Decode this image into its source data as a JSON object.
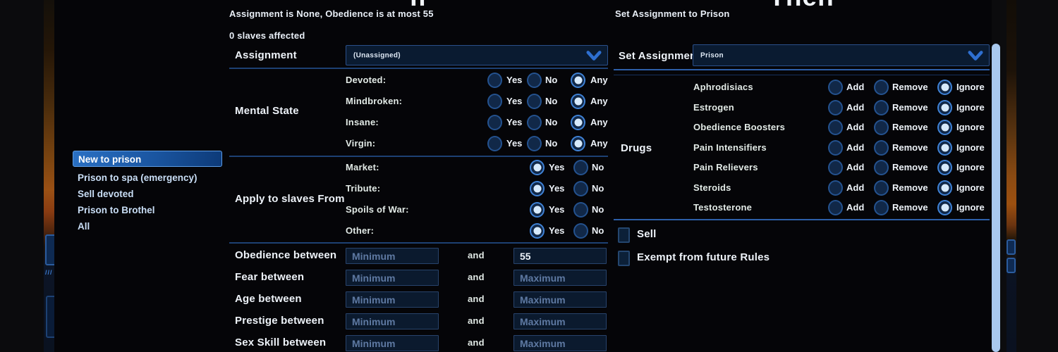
{
  "colors": {
    "accent_blue": "#3f82d6",
    "selection_blue": "#2a70c3",
    "scrollbar": "#a9c9ee",
    "panel_bg": "#050508",
    "separator": "#1d4173",
    "edge_glow_orange": "#9a5014"
  },
  "sidebar": {
    "items": [
      {
        "label": "New to prison",
        "selected": true
      },
      {
        "label": "Prison to spa (emergency)",
        "selected": false
      },
      {
        "label": "Sell devoted",
        "selected": false
      },
      {
        "label": "Prison to Brothel",
        "selected": false
      },
      {
        "label": "All",
        "selected": false
      }
    ]
  },
  "if_panel": {
    "header": "If",
    "summary": "Assignment is None, Obedience is at most 55",
    "affected": "0 slaves affected",
    "assignment": {
      "label": "Assignment",
      "value": "(Unassigned)"
    },
    "mental_state": {
      "label": "Mental State",
      "options": [
        "Yes",
        "No",
        "Any"
      ],
      "rows": [
        {
          "label": "Devoted:",
          "selected": "Any"
        },
        {
          "label": "Mindbroken:",
          "selected": "Any"
        },
        {
          "label": "Insane:",
          "selected": "Any"
        },
        {
          "label": "Virgin:",
          "selected": "Any"
        }
      ]
    },
    "apply_from": {
      "label": "Apply to slaves From",
      "options": [
        "Yes",
        "No"
      ],
      "rows": [
        {
          "label": "Market:",
          "selected": "Yes"
        },
        {
          "label": "Tribute:",
          "selected": "Yes"
        },
        {
          "label": "Spoils of War:",
          "selected": "Yes"
        },
        {
          "label": "Other:",
          "selected": "Yes"
        }
      ]
    },
    "ranges": {
      "and_label": "and",
      "min_placeholder": "Minimum",
      "max_placeholder": "Maximum",
      "rows": [
        {
          "label": "Obedience between",
          "min": "",
          "max": "55"
        },
        {
          "label": "Fear between",
          "min": "",
          "max": ""
        },
        {
          "label": "Age between",
          "min": "",
          "max": ""
        },
        {
          "label": "Prestige between",
          "min": "",
          "max": ""
        },
        {
          "label": "Sex Skill between",
          "min": "",
          "max": ""
        }
      ]
    }
  },
  "then_panel": {
    "header": "Then",
    "summary": "Set Assignment to Prison",
    "set_assignment": {
      "label": "Set Assignment",
      "value": "Prison"
    },
    "drugs": {
      "label": "Drugs",
      "options": [
        "Add",
        "Remove",
        "Ignore"
      ],
      "rows": [
        {
          "label": "Aphrodisiacs",
          "selected": "Ignore"
        },
        {
          "label": "Estrogen",
          "selected": "Ignore"
        },
        {
          "label": "Obedience Boosters",
          "selected": "Ignore"
        },
        {
          "label": "Pain Intensifiers",
          "selected": "Ignore"
        },
        {
          "label": "Pain Relievers",
          "selected": "Ignore"
        },
        {
          "label": "Steroids",
          "selected": "Ignore"
        },
        {
          "label": "Testosterone",
          "selected": "Ignore"
        }
      ]
    },
    "checkboxes": [
      {
        "label": "Sell",
        "checked": false
      },
      {
        "label": "Exempt from future Rules",
        "checked": false
      }
    ]
  }
}
